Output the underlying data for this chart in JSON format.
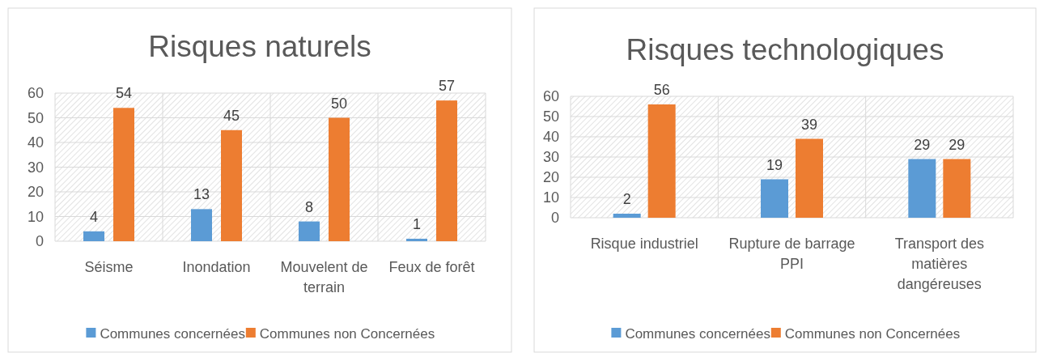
{
  "chart_data": [
    {
      "type": "bar",
      "title": "Risques naturels",
      "categories": [
        "Séisme",
        "Inondation",
        "Mouvelent de terrain",
        "Feux de forêt"
      ],
      "series": [
        {
          "name": "Communes concernées",
          "color": "#5b9bd5",
          "values": [
            4,
            13,
            8,
            1
          ]
        },
        {
          "name": "Communes non Concernées",
          "color": "#ed7d31",
          "values": [
            54,
            45,
            50,
            57
          ]
        }
      ],
      "ylim": [
        0,
        60
      ],
      "yticks": [
        0,
        10,
        20,
        30,
        40,
        50,
        60
      ],
      "grid": true,
      "legend": "bottom",
      "data_labels": true
    },
    {
      "type": "bar",
      "title": "Risques technologiques",
      "categories": [
        "Risque industriel",
        "Rupture de barrage PPI",
        "Transport des matières dangéreuses"
      ],
      "series": [
        {
          "name": "Communes concernées",
          "color": "#5b9bd5",
          "values": [
            2,
            19,
            29
          ]
        },
        {
          "name": "Communes non Concernées",
          "color": "#ed7d31",
          "values": [
            56,
            39,
            29
          ]
        }
      ],
      "ylim": [
        0,
        60
      ],
      "yticks": [
        0,
        10,
        20,
        30,
        40,
        50,
        60
      ],
      "grid": true,
      "legend": "bottom",
      "data_labels": true
    }
  ]
}
